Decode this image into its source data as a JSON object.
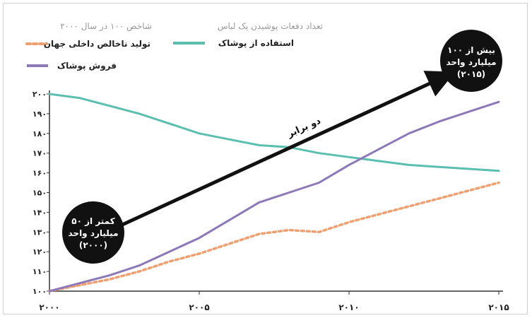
{
  "chart_data": {
    "type": "line",
    "legend": {
      "left_header": "شاخص ۱۰۰ در سال ۲۰۰۰",
      "right_header": "تعداد دفعات پوشیدن یک لباس"
    },
    "x": [
      2000,
      2001,
      2002,
      2003,
      2004,
      2005,
      2006,
      2007,
      2008,
      2009,
      2010,
      2011,
      2012,
      2013,
      2014,
      2015
    ],
    "xlim": [
      2000,
      2015
    ],
    "ylim": [
      100,
      200
    ],
    "x_tick_labels": [
      "۲۰۰۰",
      "۲۰۰۵",
      "۲۰۱۰",
      "۲۰۱۵"
    ],
    "x_tick_values": [
      2000,
      2005,
      2010,
      2015
    ],
    "y_tick_labels": [
      "۱۰۰",
      "۱۱۰",
      "۱۲۰",
      "۱۳۰",
      "۱۴۰",
      "۱۵۰",
      "۱۶۰",
      "۱۷۰",
      "۱۸۰",
      "۱۹۰",
      "۲۰۰"
    ],
    "y_tick_values": [
      100,
      110,
      120,
      130,
      140,
      150,
      160,
      170,
      180,
      190,
      200
    ],
    "series": [
      {
        "name": "استفاده از پوشاک",
        "color": "#5bbfb0",
        "style": "solid",
        "values": [
          200,
          198,
          194,
          190,
          185,
          180,
          177,
          174,
          173,
          170,
          168,
          166,
          164,
          163,
          162,
          161
        ]
      },
      {
        "name": "تولید ناخالص داخلی جهان",
        "color": "#f0a070",
        "style": "dotted",
        "values": [
          100,
          103,
          106,
          110,
          115,
          119,
          124,
          129,
          131,
          130,
          135,
          139,
          143,
          147,
          151,
          155
        ]
      },
      {
        "name": "فروش پوشاک",
        "color": "#8d78b8",
        "style": "solid",
        "values": [
          100,
          104,
          108,
          113,
          120,
          127,
          136,
          145,
          150,
          155,
          164,
          172,
          180,
          186,
          191,
          196
        ]
      }
    ],
    "annotations": {
      "start_bubble": [
        "کمتر از ۵۰",
        "میلیارد واحد",
        "(۲۰۰۰)"
      ],
      "end_bubble": [
        "بیش از ۱۰۰",
        "میلیارد واحد",
        "(۲۰۱۵)"
      ],
      "arrow_label": "دو برابر"
    }
  }
}
